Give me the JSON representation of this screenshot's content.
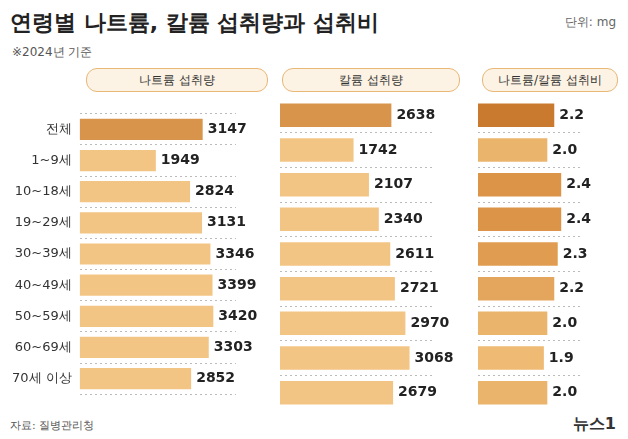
{
  "title": "연령별 나트륨, 칼륨 섭취량과 섭취비",
  "subtitle": "※2024년 기준",
  "unit": "단위: mg",
  "source": "자료: 질병관리청",
  "logo": "뉴스1",
  "chart_data": [
    {
      "type": "bar",
      "title": "나트륨 섭취량",
      "orientation": "horizontal",
      "categories": [
        "전체",
        "1~9세",
        "10~18세",
        "19~29세",
        "30~39세",
        "40~49세",
        "50~59세",
        "60~69세",
        "70세 이상"
      ],
      "values": [
        3147,
        1949,
        2824,
        3131,
        3346,
        3399,
        3420,
        3303,
        2852
      ],
      "colors": [
        "#d8944a",
        "#f3c584",
        "#f3c584",
        "#f3c584",
        "#f3c584",
        "#f3c584",
        "#f3c584",
        "#f3c584",
        "#f3c584"
      ],
      "xlim": [
        0,
        4000
      ],
      "data_labels": true,
      "tick_labels": "y",
      "grid": true
    },
    {
      "type": "bar",
      "title": "칼륨 섭취량",
      "orientation": "horizontal",
      "categories": [
        "전체",
        "1~9세",
        "10~18세",
        "19~29세",
        "30~39세",
        "40~49세",
        "50~59세",
        "60~69세",
        "70세 이상"
      ],
      "values": [
        2638,
        1742,
        2107,
        2340,
        2611,
        2721,
        2970,
        3068,
        2679
      ],
      "colors": [
        "#d8944a",
        "#f3c584",
        "#f3c584",
        "#f3c584",
        "#f3c584",
        "#f3c584",
        "#f3c584",
        "#f3c584",
        "#f3c584"
      ],
      "xlim": [
        0,
        3600
      ],
      "data_labels": true,
      "tick_labels": false,
      "grid": true
    },
    {
      "type": "bar",
      "title": "나트륨/칼륨 섭취비",
      "orientation": "horizontal",
      "categories": [
        "전체",
        "1~9세",
        "10~18세",
        "19~29세",
        "30~39세",
        "40~49세",
        "50~59세",
        "60~69세",
        "70세 이상"
      ],
      "values": [
        2.2,
        2.0,
        2.4,
        2.4,
        2.3,
        2.2,
        2.0,
        1.9,
        2.0
      ],
      "value_labels": [
        "2.2",
        "2.0",
        "2.4",
        "2.4",
        "2.3",
        "2.2",
        "2.0",
        "1.9",
        "2.0"
      ],
      "colors": [
        "#c97a2e",
        "#ebb46c",
        "#dc9448",
        "#dc9448",
        "#e09d52",
        "#e4a55c",
        "#ebb46c",
        "#eeba74",
        "#ebb46c"
      ],
      "xlim": [
        0,
        3
      ],
      "data_labels": true,
      "tick_labels": false,
      "grid": true
    }
  ]
}
